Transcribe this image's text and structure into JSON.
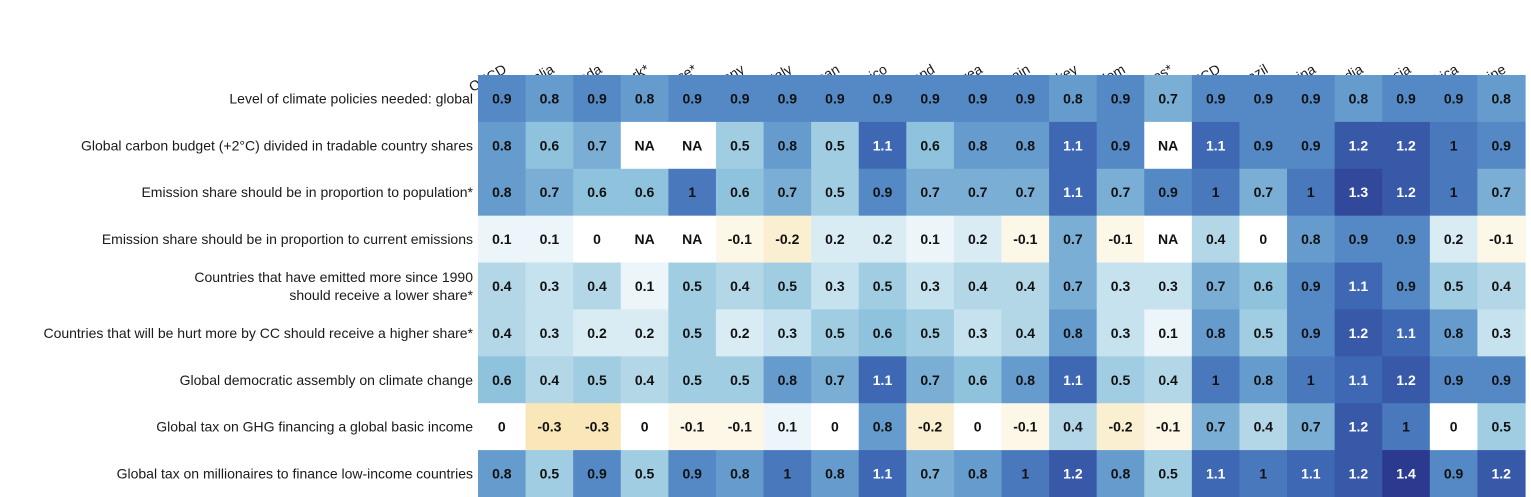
{
  "chart_data": {
    "type": "heatmap",
    "na_label": "NA",
    "columns": [
      "OECD",
      "Australia",
      "Canada",
      "Denmark*",
      "France*",
      "Germany",
      "Italy",
      "Japan",
      "Mexico",
      "Poland",
      "South Korea",
      "Spain",
      "Turkey",
      "United Kingdom",
      "United States*",
      "Non-OECD",
      "Brazil",
      "China",
      "India",
      "Indonesia",
      "South Africa",
      "Ukraine"
    ],
    "rows": [
      {
        "label": [
          "Level of climate policies needed: global"
        ],
        "values": [
          0.9,
          0.8,
          0.9,
          0.8,
          0.9,
          0.9,
          0.9,
          0.9,
          0.9,
          0.9,
          0.9,
          0.9,
          0.8,
          0.9,
          0.7,
          0.9,
          0.9,
          0.9,
          0.8,
          0.9,
          0.9,
          0.8
        ]
      },
      {
        "label": [
          "Global carbon budget (+2°C) divided in tradable country shares"
        ],
        "values": [
          0.8,
          0.6,
          0.7,
          null,
          null,
          0.5,
          0.8,
          0.5,
          1.1,
          0.6,
          0.8,
          0.8,
          1.1,
          0.9,
          null,
          1.1,
          0.9,
          0.9,
          1.2,
          1.2,
          1,
          0.9
        ]
      },
      {
        "label": [
          "Emission share should be in proportion to population*"
        ],
        "values": [
          0.8,
          0.7,
          0.6,
          0.6,
          1,
          0.6,
          0.7,
          0.5,
          0.9,
          0.7,
          0.7,
          0.7,
          1.1,
          0.7,
          0.9,
          1,
          0.7,
          1,
          1.3,
          1.2,
          1,
          0.7
        ]
      },
      {
        "label": [
          "Emission share should be in proportion to current emissions"
        ],
        "values": [
          0.1,
          0.1,
          0,
          null,
          null,
          -0.1,
          -0.2,
          0.2,
          0.2,
          0.1,
          0.2,
          -0.1,
          0.7,
          -0.1,
          null,
          0.4,
          0,
          0.8,
          0.9,
          0.9,
          0.2,
          -0.1
        ]
      },
      {
        "label": [
          "Countries that have emitted more since 1990",
          "should receive a lower share*"
        ],
        "values": [
          0.4,
          0.3,
          0.4,
          0.1,
          0.5,
          0.4,
          0.5,
          0.3,
          0.5,
          0.3,
          0.4,
          0.4,
          0.7,
          0.3,
          0.3,
          0.7,
          0.6,
          0.9,
          1.1,
          0.9,
          0.5,
          0.4
        ]
      },
      {
        "label": [
          "Countries that will be hurt more by CC should receive a higher share*"
        ],
        "values": [
          0.4,
          0.3,
          0.2,
          0.2,
          0.5,
          0.2,
          0.3,
          0.5,
          0.6,
          0.5,
          0.3,
          0.4,
          0.8,
          0.3,
          0.1,
          0.8,
          0.5,
          0.9,
          1.2,
          1.1,
          0.8,
          0.3
        ]
      },
      {
        "label": [
          "Global democratic assembly on climate change"
        ],
        "values": [
          0.6,
          0.4,
          0.5,
          0.4,
          0.5,
          0.5,
          0.8,
          0.7,
          1.1,
          0.7,
          0.6,
          0.8,
          1.1,
          0.5,
          0.4,
          1,
          0.8,
          1,
          1.1,
          1.2,
          0.9,
          0.9
        ]
      },
      {
        "label": [
          "Global tax on GHG financing a global basic income"
        ],
        "values": [
          0,
          -0.3,
          -0.3,
          0,
          -0.1,
          -0.1,
          0.1,
          0,
          0.8,
          -0.2,
          0,
          -0.1,
          0.4,
          -0.2,
          -0.1,
          0.7,
          0.4,
          0.7,
          1.2,
          1,
          0,
          0.5
        ]
      },
      {
        "label": [
          "Global tax on millionaires to finance low-income countries"
        ],
        "values": [
          0.8,
          0.5,
          0.9,
          0.5,
          0.9,
          0.8,
          1,
          0.8,
          1.1,
          0.7,
          0.8,
          1,
          1.2,
          0.8,
          0.5,
          1.1,
          1,
          1.1,
          1.2,
          1.4,
          0.9,
          1.2
        ]
      }
    ],
    "color_scale": {
      "negative_max": "#f5d78c",
      "zero": "#ffffff",
      "positive_max": "#2b3a8f",
      "na_color": "#ffffff",
      "neg_limit": -0.5,
      "pos_limit": 1.4
    }
  }
}
